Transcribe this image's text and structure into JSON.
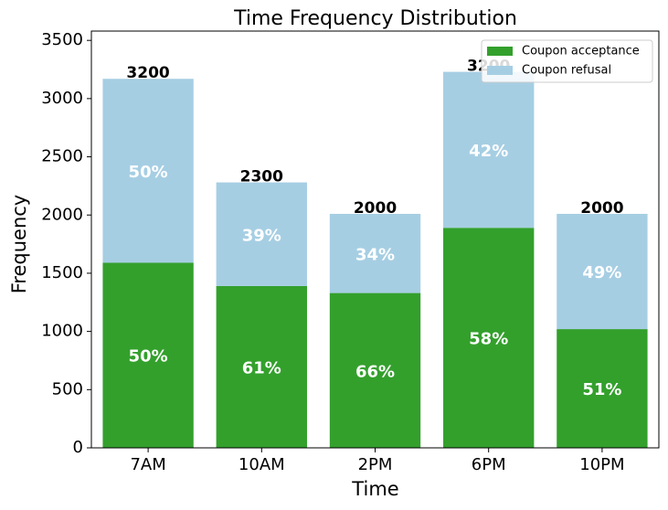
{
  "chart_data": {
    "type": "stacked-bar",
    "title": "Time Frequency Distribution",
    "x_label": "Time",
    "y_label": "Frequency",
    "categories": [
      "7AM",
      "10AM",
      "2PM",
      "6PM",
      "10PM"
    ],
    "series": [
      {
        "name": "Coupon acceptance",
        "color": "#33a02c",
        "values": [
          1590,
          1390,
          1330,
          1890,
          1020
        ],
        "percent": {
          "values": [
            50,
            61,
            66,
            58,
            51
          ],
          "value_labels": [
            "50%",
            "61%",
            "66%",
            "58%",
            "51%"
          ]
        }
      },
      {
        "name": "Coupon refusal",
        "color": "#a6cee3",
        "values": [
          1580,
          890,
          680,
          1340,
          990
        ],
        "percent": {
          "values": [
            50,
            39,
            34,
            42,
            49
          ],
          "value_labels": [
            "50%",
            "39%",
            "34%",
            "42%",
            "49%"
          ]
        }
      }
    ],
    "totals": {
      "values": [
        3170,
        2280,
        2010,
        3230,
        2010
      ],
      "value_labels": [
        "3200",
        "2300",
        "2000",
        "3200",
        "2000"
      ]
    },
    "ylim": [
      0,
      3580
    ],
    "yticks": [
      0,
      500,
      1000,
      1500,
      2000,
      2500,
      3000,
      3500
    ],
    "legend": "upper right"
  }
}
